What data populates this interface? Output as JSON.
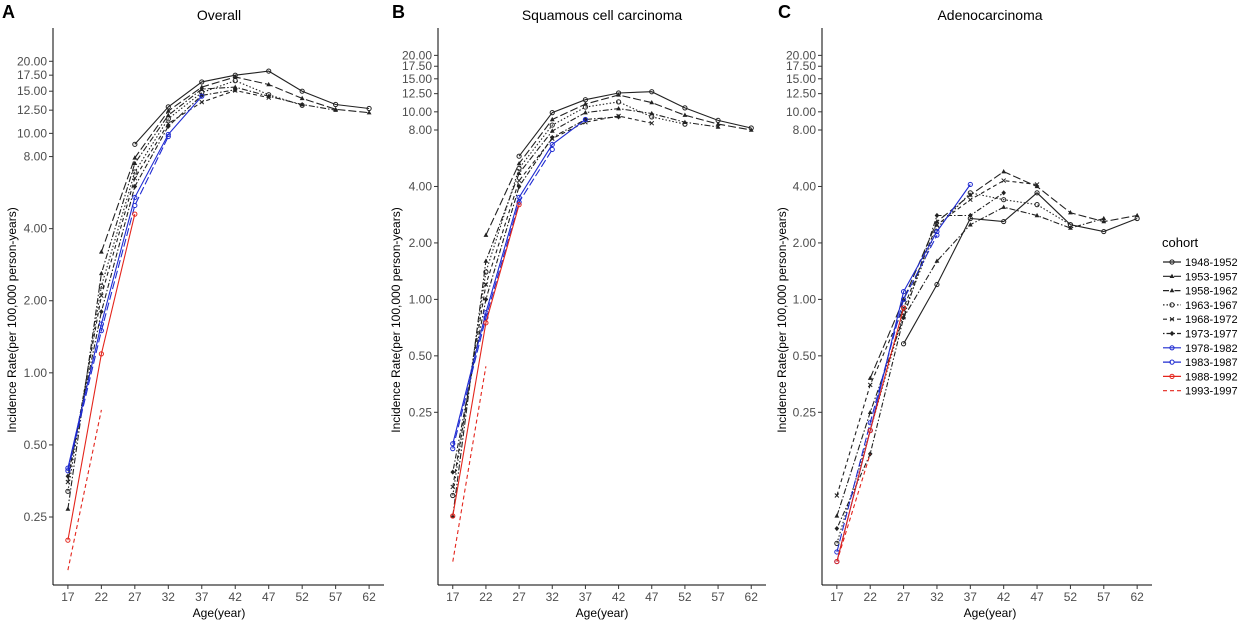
{
  "chart_data": {
    "type": "line",
    "x_label": "Age(year)",
    "y_label": "Incidence Rate(per 100,000 person-years)",
    "x_ticks": [
      "17",
      "22",
      "27",
      "32",
      "37",
      "42",
      "47",
      "52",
      "57",
      "62"
    ],
    "legend_title": "cohort",
    "legend": [
      {
        "name": "1948-1952",
        "color": "#222222",
        "dash": "solid",
        "marker": "circle"
      },
      {
        "name": "1953-1957",
        "color": "#222222",
        "dash": "longdash",
        "marker": "triangle"
      },
      {
        "name": "1958-1962",
        "color": "#222222",
        "dash": "dashdot",
        "marker": "triangle"
      },
      {
        "name": "1963-1967",
        "color": "#222222",
        "dash": "dotted",
        "marker": "circle"
      },
      {
        "name": "1968-1972",
        "color": "#222222",
        "dash": "dashed",
        "marker": "x"
      },
      {
        "name": "1973-1977",
        "color": "#222222",
        "dash": "dotdash",
        "marker": "diamond"
      },
      {
        "name": "1978-1982",
        "color": "#1f2bd1",
        "dash": "solid",
        "marker": "circle"
      },
      {
        "name": "1983-1987",
        "color": "#1f2bd1",
        "dash": "longdash",
        "marker": "circle"
      },
      {
        "name": "1988-1992",
        "color": "#e4251c",
        "dash": "solid",
        "marker": "circle"
      },
      {
        "name": "1993-1997",
        "color": "#e4251c",
        "dash": "dashed",
        "marker": "none"
      }
    ],
    "panels": [
      {
        "letter": "A",
        "title": "Overall",
        "y_range": [
          0.13,
          26
        ],
        "y_ticks": [
          "0.25",
          "0.50",
          "1.00",
          "2.00",
          "4.00",
          "8.00",
          "10.00",
          "12.50",
          "15.00",
          "17.50",
          "20.00"
        ],
        "series": [
          {
            "name": "1948-1952",
            "x": [
              27,
              32,
              37,
              42,
              47,
              52,
              57,
              62
            ],
            "y": [
              9,
              12.9,
              16.4,
              17.5,
              18.2,
              15,
              13.2,
              12.7
            ]
          },
          {
            "name": "1953-1957",
            "x": [
              22,
              27,
              32,
              37,
              42,
              47,
              52,
              57,
              62
            ],
            "y": [
              3.2,
              7.9,
              12.4,
              15.6,
              17.2,
              16,
              14,
              12.6,
              12.2
            ]
          },
          {
            "name": "1958-1962",
            "x": [
              17,
              22,
              27,
              32,
              37,
              42,
              47,
              52,
              57
            ],
            "y": [
              0.27,
              2.6,
              7.5,
              11.9,
              15.3,
              15.6,
              14.3,
              13.2,
              12.5
            ]
          },
          {
            "name": "1963-1967",
            "x": [
              17,
              22,
              27,
              32,
              37,
              42,
              47,
              52
            ],
            "y": [
              0.32,
              2.3,
              6.9,
              11.5,
              14.8,
              16.6,
              14.5,
              13.1
            ]
          },
          {
            "name": "1968-1972",
            "x": [
              17,
              22,
              27,
              32,
              37,
              42,
              47
            ],
            "y": [
              0.35,
              2.1,
              6.5,
              11,
              13.5,
              15.1,
              14.1
            ]
          },
          {
            "name": "1973-1977",
            "x": [
              17,
              22,
              27,
              32,
              37,
              42
            ],
            "y": [
              0.37,
              1.8,
              6,
              10.7,
              14.4,
              15.2
            ]
          },
          {
            "name": "1978-1982",
            "x": [
              17,
              22,
              27,
              32,
              37
            ],
            "y": [
              0.4,
              1.6,
              5.4,
              9.9,
              14.3
            ]
          },
          {
            "name": "1983-1987",
            "x": [
              17,
              22,
              27,
              32
            ],
            "y": [
              0.39,
              1.5,
              5,
              9.7
            ]
          },
          {
            "name": "1988-1992",
            "x": [
              17,
              22,
              27
            ],
            "y": [
              0.2,
              1.2,
              4.6
            ]
          },
          {
            "name": "1993-1997",
            "x": [
              17,
              22
            ],
            "y": [
              0.15,
              0.7
            ]
          }
        ]
      },
      {
        "letter": "B",
        "title": "Squamous cell carcinoma",
        "y_range": [
          0.03,
          26
        ],
        "y_ticks": [
          "0.25",
          "0.50",
          "1.00",
          "2.00",
          "4.00",
          "8.00",
          "10.00",
          "12.50",
          "15.00",
          "17.50",
          "20.00"
        ],
        "series": [
          {
            "name": "1948-1952",
            "x": [
              27,
              32,
              37,
              42,
              47,
              52,
              57,
              62
            ],
            "y": [
              5.8,
              9.9,
              11.6,
              12.6,
              12.8,
              10.5,
              9,
              8.2
            ]
          },
          {
            "name": "1953-1957",
            "x": [
              22,
              27,
              32,
              37,
              42,
              47,
              52,
              57,
              62
            ],
            "y": [
              2.2,
              5.3,
              9.1,
              11,
              12.3,
              11.2,
              9.6,
              8.6,
              8
            ]
          },
          {
            "name": "1958-1962",
            "x": [
              17,
              22,
              27,
              32,
              37,
              42,
              47,
              52,
              57
            ],
            "y": [
              0.07,
              1.6,
              4.7,
              7.9,
              9.9,
              10.4,
              9.8,
              8.8,
              8.3
            ]
          },
          {
            "name": "1963-1967",
            "x": [
              17,
              22,
              27,
              32,
              37,
              42,
              47,
              52
            ],
            "y": [
              0.09,
              1.4,
              5,
              8.5,
              10.6,
              11.3,
              9.4,
              8.6
            ]
          },
          {
            "name": "1968-1972",
            "x": [
              17,
              22,
              27,
              32,
              37,
              42,
              47
            ],
            "y": [
              0.1,
              1.2,
              4.3,
              7.2,
              8.8,
              9.5,
              8.7
            ]
          },
          {
            "name": "1973-1977",
            "x": [
              17,
              22,
              27,
              32,
              37,
              42
            ],
            "y": [
              0.12,
              1,
              4,
              7.3,
              9.1,
              9.4
            ]
          },
          {
            "name": "1978-1982",
            "x": [
              17,
              22,
              27,
              32,
              37
            ],
            "y": [
              0.17,
              0.85,
              3.5,
              6.7,
              9.1
            ]
          },
          {
            "name": "1983-1987",
            "x": [
              17,
              22,
              27,
              32
            ],
            "y": [
              0.16,
              0.8,
              3.3,
              6.3
            ]
          },
          {
            "name": "1988-1992",
            "x": [
              17,
              22,
              27
            ],
            "y": [
              0.07,
              0.75,
              3.2
            ]
          },
          {
            "name": "1993-1997",
            "x": [
              17,
              22
            ],
            "y": [
              0.04,
              0.44
            ]
          }
        ]
      },
      {
        "letter": "C",
        "title": "Adenocarcinoma",
        "y_range": [
          0.03,
          26
        ],
        "y_ticks": [
          "0.25",
          "0.50",
          "1.00",
          "2.00",
          "4.00",
          "8.00",
          "10.00",
          "12.50",
          "15.00",
          "17.50",
          "20.00"
        ],
        "series": [
          {
            "name": "1948-1952",
            "x": [
              27,
              32,
              37,
              42,
              47,
              52,
              57,
              62
            ],
            "y": [
              0.58,
              1.2,
              2.7,
              2.6,
              3.7,
              2.5,
              2.3,
              2.7
            ]
          },
          {
            "name": "1953-1957",
            "x": [
              22,
              27,
              32,
              37,
              42,
              47,
              52,
              57,
              62
            ],
            "y": [
              0.38,
              1,
              2.6,
              3.6,
              4.8,
              4,
              2.9,
              2.6,
              2.8
            ]
          },
          {
            "name": "1958-1962",
            "x": [
              17,
              22,
              27,
              32,
              37,
              42,
              47,
              52,
              57
            ],
            "y": [
              0.07,
              0.25,
              0.8,
              1.6,
              2.5,
              3.1,
              2.8,
              2.4,
              2.7
            ]
          },
          {
            "name": "1963-1967",
            "x": [
              17,
              22,
              27,
              32,
              37,
              42,
              47,
              52
            ],
            "y": [
              0.05,
              0.2,
              0.85,
              2.4,
              3.7,
              3.4,
              3.2,
              2.5
            ]
          },
          {
            "name": "1968-1972",
            "x": [
              17,
              22,
              27,
              32,
              37,
              42,
              47
            ],
            "y": [
              0.09,
              0.35,
              0.9,
              2.5,
              3.4,
              4.3,
              4.1
            ]
          },
          {
            "name": "1973-1977",
            "x": [
              17,
              22,
              27,
              32,
              37,
              42
            ],
            "y": [
              0.06,
              0.15,
              0.8,
              2.8,
              2.8,
              3.7
            ]
          },
          {
            "name": "1978-1982",
            "x": [
              17,
              22,
              27,
              32,
              37
            ],
            "y": [
              0.04,
              0.2,
              1.1,
              2.3,
              4.1
            ]
          },
          {
            "name": "1983-1987",
            "x": [
              17,
              22,
              27,
              32
            ],
            "y": [
              0.045,
              0.22,
              1,
              2.2
            ]
          },
          {
            "name": "1988-1992",
            "x": [
              17,
              22,
              27
            ],
            "y": [
              0.04,
              0.2,
              0.9
            ]
          },
          {
            "name": "1993-1997",
            "x": [
              17,
              22
            ],
            "y": [
              0.04,
              0.15
            ]
          }
        ]
      }
    ]
  }
}
